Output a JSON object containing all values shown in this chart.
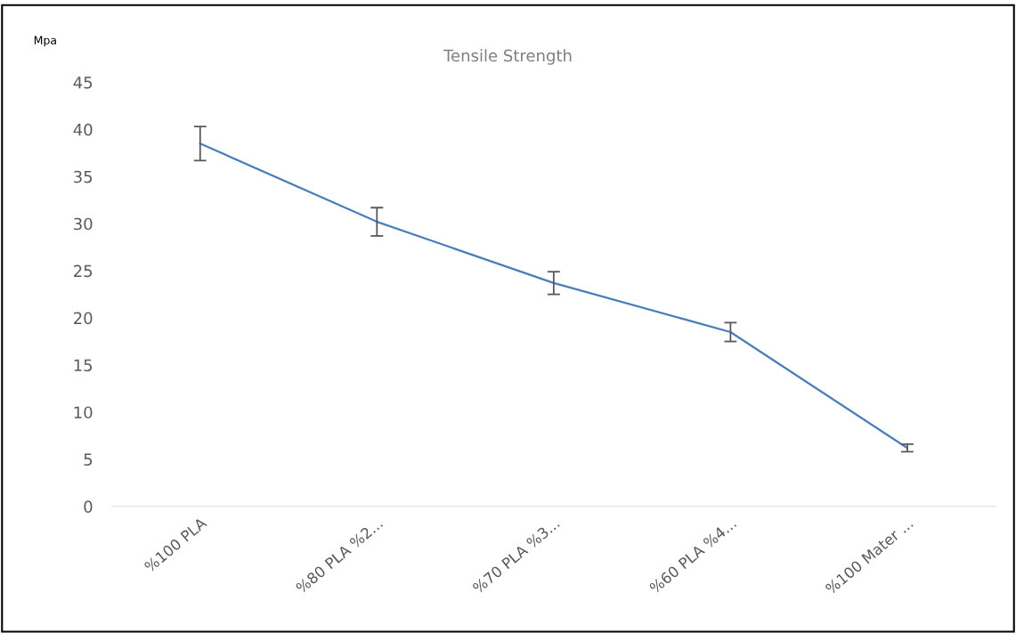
{
  "chart_data": {
    "type": "line",
    "title": "Tensile Strength",
    "ylabel": "Mpa",
    "categories": [
      "%100 PLA",
      "%80 PLA %2...",
      "%70 PLA %3...",
      "%60 PLA %4...",
      "%100 Mater ..."
    ],
    "series": [
      {
        "color": "#4a7ebb",
        "values": [
          38.5,
          30.2,
          23.7,
          18.5,
          6.2
        ],
        "errors": [
          1.8,
          1.5,
          1.2,
          1.0,
          0.4
        ]
      }
    ],
    "ylim": [
      0,
      45
    ],
    "yticks": [
      0,
      5,
      10,
      15,
      20,
      25,
      30,
      35,
      40,
      45
    ],
    "grid": false,
    "legend": false,
    "marker": "none",
    "line_style": "solid"
  }
}
